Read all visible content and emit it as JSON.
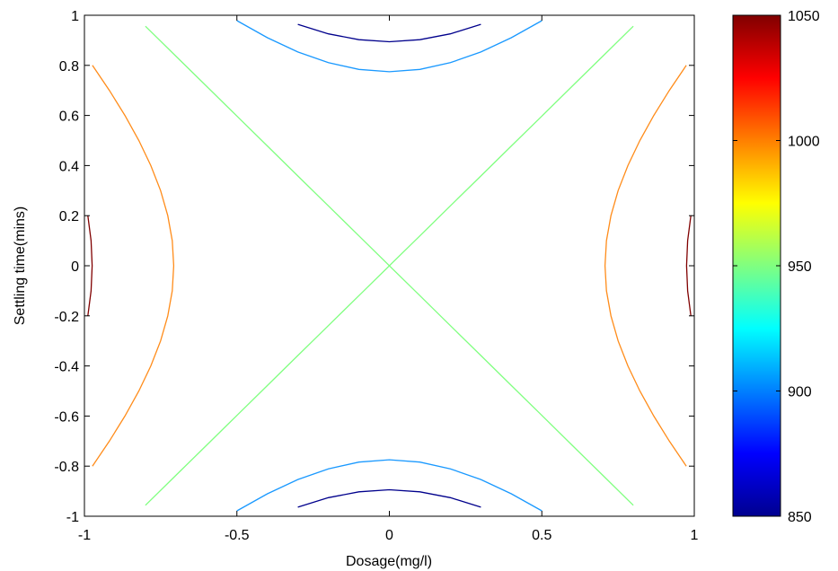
{
  "chart_data": {
    "type": "contour",
    "xlabel": "Dosage(mg/l)",
    "ylabel": "Settling time(mins)",
    "xlim": [
      -1,
      1
    ],
    "ylim": [
      -1,
      1
    ],
    "xticks": [
      "-1",
      "-0.5",
      "0",
      "0.5",
      "1"
    ],
    "yticks": [
      "-1",
      "-0.8",
      "-0.6",
      "-0.4",
      "-0.2",
      "0",
      "0.2",
      "0.4",
      "0.6",
      "0.8",
      "1"
    ],
    "colorbar": {
      "range": [
        850,
        1050
      ],
      "ticks": [
        "850",
        "900",
        "950",
        "1000",
        "1050"
      ],
      "colormap": "jet"
    },
    "model": "z = 955 + 100*x^2 - 70*y^2",
    "levels": [
      {
        "value": 1050,
        "color": "#800000"
      },
      {
        "value": 1005,
        "color": "#ff8c1a"
      },
      {
        "value": 955,
        "color": "#80ff80"
      },
      {
        "value": 913,
        "color": "#1a99ff"
      },
      {
        "value": 899,
        "color": "#00008c"
      }
    ],
    "grid": false
  }
}
